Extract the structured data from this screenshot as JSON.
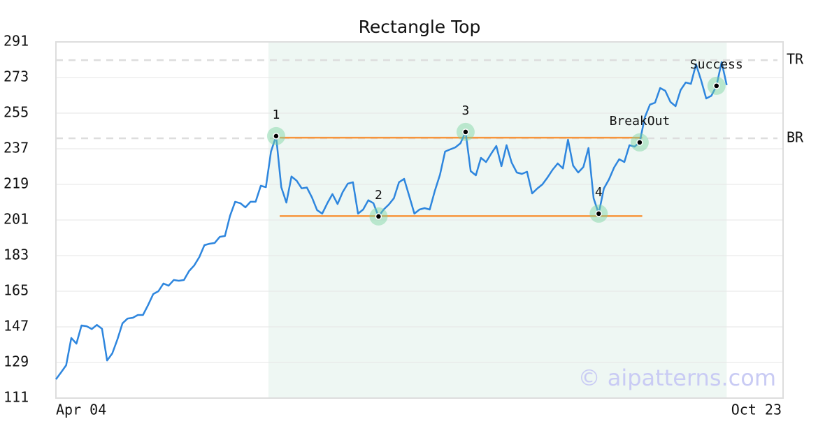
{
  "chart_data": {
    "type": "line",
    "title": "Rectangle Top",
    "categories": [
      "Apr 04",
      null,
      null,
      null,
      null,
      null,
      null,
      null,
      null,
      null,
      null,
      null,
      null,
      null,
      null,
      null,
      null,
      null,
      null,
      null,
      null,
      null,
      null,
      null,
      null,
      null,
      null,
      null,
      null,
      null,
      null,
      null,
      null,
      null,
      null,
      null,
      null,
      null,
      null,
      null,
      null,
      null,
      null,
      null,
      null,
      null,
      null,
      null,
      null,
      null,
      null,
      null,
      null,
      null,
      null,
      null,
      null,
      null,
      null,
      null,
      null,
      null,
      null,
      null,
      null,
      null,
      null,
      null,
      null,
      null,
      null,
      null,
      null,
      null,
      null,
      null,
      null,
      null,
      null,
      null,
      null,
      null,
      null,
      null,
      null,
      null,
      null,
      null,
      null,
      null,
      null,
      null,
      null,
      null,
      null,
      null,
      null,
      null,
      null,
      null,
      null,
      null,
      null,
      null,
      null,
      null,
      null,
      null,
      null,
      null,
      null,
      null,
      null,
      null,
      null,
      null,
      null,
      null,
      null,
      null,
      null,
      null,
      null,
      null,
      null,
      null,
      null,
      null,
      null,
      null,
      null,
      null,
      null,
      null,
      null,
      null,
      null,
      null,
      null,
      null,
      null,
      null,
      "Oct 23"
    ],
    "series": [
      {
        "color": "#2e86de",
        "values": [
          120.5,
          124,
          127.6,
          141.4,
          138.5,
          147.7,
          147.3,
          145.9,
          148,
          146,
          130,
          133.6,
          140.6,
          148.8,
          151.2,
          151.6,
          153,
          153,
          158,
          163.6,
          165,
          168.9,
          167.8,
          170.7,
          170.3,
          170.7,
          175.2,
          178,
          182.3,
          188.3,
          189,
          189.4,
          192.5,
          192.9,
          203.1,
          210.2,
          209.5,
          207.4,
          210.2,
          210.2,
          218.3,
          217.6,
          235.6,
          243.4,
          217.6,
          209.8,
          223.0,
          220.9,
          217,
          217.4,
          212.4,
          206,
          204.2,
          209.5,
          214.1,
          209.1,
          215.1,
          219.4,
          220.1,
          204.2,
          206.3,
          211,
          209.5,
          202.8,
          206.3,
          208.8,
          212,
          220.1,
          221.8,
          213,
          204.2,
          206.3,
          207,
          206.3,
          215.8,
          223.9,
          235.6,
          236.7,
          237.7,
          239.8,
          245.5,
          225.7,
          223.6,
          232.4,
          230.3,
          234.5,
          238.4,
          228.2,
          238.8,
          230,
          225,
          224.3,
          225.4,
          214.4,
          216.9,
          219,
          222.5,
          226.4,
          229.6,
          227.1,
          241.6,
          228.5,
          225,
          227.8,
          237.4,
          212,
          204.2,
          216.9,
          221.5,
          227.5,
          231.7,
          230.3,
          238.8,
          238.1,
          240.2,
          252.9,
          259.3,
          260.3,
          267.7,
          266.3,
          260.7,
          258.5,
          266.7,
          270.5,
          269.8,
          279.7,
          271.6,
          262.4,
          263.8,
          268.8,
          280.8,
          269.2,
          null,
          null,
          null,
          null,
          null,
          null,
          null,
          null,
          null,
          null,
          null
        ]
      }
    ],
    "ylim": [
      111,
      291
    ],
    "yticks": [
      111,
      129,
      147,
      165,
      183,
      201,
      219,
      237,
      255,
      273,
      291
    ],
    "grid": true,
    "highlight": {
      "from": 41.5,
      "to": 131,
      "color": "#eef7f3"
    },
    "levels": [
      {
        "label": "TR",
        "value": 281.8
      },
      {
        "label": "BR",
        "value": 242.3
      }
    ],
    "lines": [
      {
        "value": 242.6,
        "from": 43.7,
        "to": 114.5
      },
      {
        "value": 203.0,
        "from": 43.7,
        "to": 114.5
      }
    ],
    "line_color": "#f7953b",
    "markers": [
      {
        "label": "1",
        "index": 43,
        "value": 243.4
      },
      {
        "label": "2",
        "index": 63,
        "value": 202.8
      },
      {
        "label": "3",
        "index": 80,
        "value": 245.5
      },
      {
        "label": "4",
        "index": 106,
        "value": 204.2
      },
      {
        "label": "BreakOut",
        "index": 114,
        "value": 240.2
      },
      {
        "label": "Success",
        "index": 129,
        "value": 268.8
      }
    ],
    "watermark": "© aipatterns.com"
  }
}
